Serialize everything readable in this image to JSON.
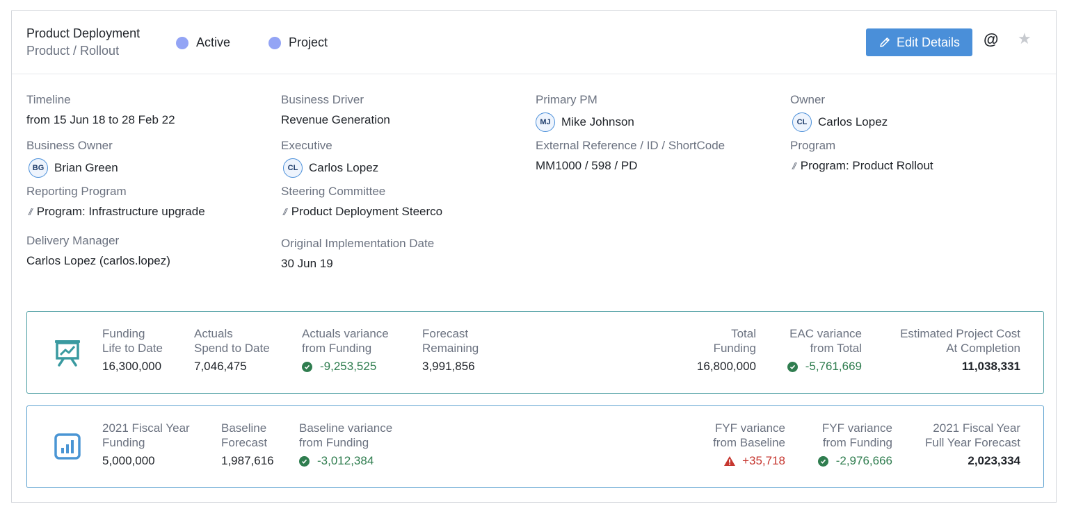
{
  "header": {
    "title": "Product Deployment",
    "subtitle": "Product / Rollout",
    "status_label": "Active",
    "type_label": "Project",
    "edit_label": "Edit Details",
    "dot_color": "#93a4f5",
    "accent_color": "#4a8fd9"
  },
  "fields": {
    "timeline": {
      "label": "Timeline",
      "value": "from 15 Jun 18 to 28 Feb 22"
    },
    "business_driver": {
      "label": "Business Driver",
      "value": "Revenue Generation"
    },
    "primary_pm": {
      "label": "Primary PM",
      "initials": "MJ",
      "value": "Mike Johnson"
    },
    "owner": {
      "label": "Owner",
      "initials": "CL",
      "value": "Carlos Lopez"
    },
    "business_owner": {
      "label": "Business Owner",
      "initials": "BG",
      "value": "Brian Green"
    },
    "executive": {
      "label": "Executive",
      "initials": "CL",
      "value": "Carlos Lopez"
    },
    "external_ref": {
      "label": "External Reference / ID / ShortCode",
      "value": "MM1000 / 598 / PD"
    },
    "program": {
      "label": "Program",
      "value": "Program: Product Rollout"
    },
    "reporting_program": {
      "label": "Reporting Program",
      "value": "Program: Infrastructure upgrade"
    },
    "steering_committee": {
      "label": "Steering Committee",
      "value": "Product Deployment Steerco"
    },
    "delivery_manager": {
      "label": "Delivery Manager",
      "value": "Carlos Lopez (carlos.lopez)"
    },
    "original_impl_date": {
      "label": "Original Implementation Date",
      "value": "30 Jun 19"
    }
  },
  "lifetime": {
    "funding": {
      "l1": "Funding",
      "l2": "Life to Date",
      "value": "16,300,000"
    },
    "actuals": {
      "l1": "Actuals",
      "l2": "Spend to Date",
      "value": "7,046,475"
    },
    "actuals_variance": {
      "l1": "Actuals variance",
      "l2": "from Funding",
      "value": "-9,253,525"
    },
    "forecast": {
      "l1": "Forecast",
      "l2": "Remaining",
      "value": "3,991,856"
    },
    "total_funding": {
      "l1": "Total",
      "l2": "Funding",
      "value": "16,800,000"
    },
    "eac_variance": {
      "l1": "EAC variance",
      "l2": "from Total",
      "value": "-5,761,669"
    },
    "eac": {
      "l1": "Estimated Project Cost",
      "l2": "At Completion",
      "value": "11,038,331"
    }
  },
  "fiscal": {
    "fy_funding": {
      "l1": "2021 Fiscal Year",
      "l2": "Funding",
      "value": "5,000,000"
    },
    "baseline": {
      "l1": "Baseline",
      "l2": "Forecast",
      "value": "1,987,616"
    },
    "baseline_variance": {
      "l1": "Baseline variance",
      "l2": "from Funding",
      "value": "-3,012,384"
    },
    "fyf_baseline": {
      "l1": "FYF variance",
      "l2": "from Baseline",
      "value": "+35,718"
    },
    "fyf_funding": {
      "l1": "FYF variance",
      "l2": "from Funding",
      "value": "-2,976,666"
    },
    "fyf": {
      "l1": "2021 Fiscal Year",
      "l2": "Full Year Forecast",
      "value": "2,023,334"
    }
  }
}
